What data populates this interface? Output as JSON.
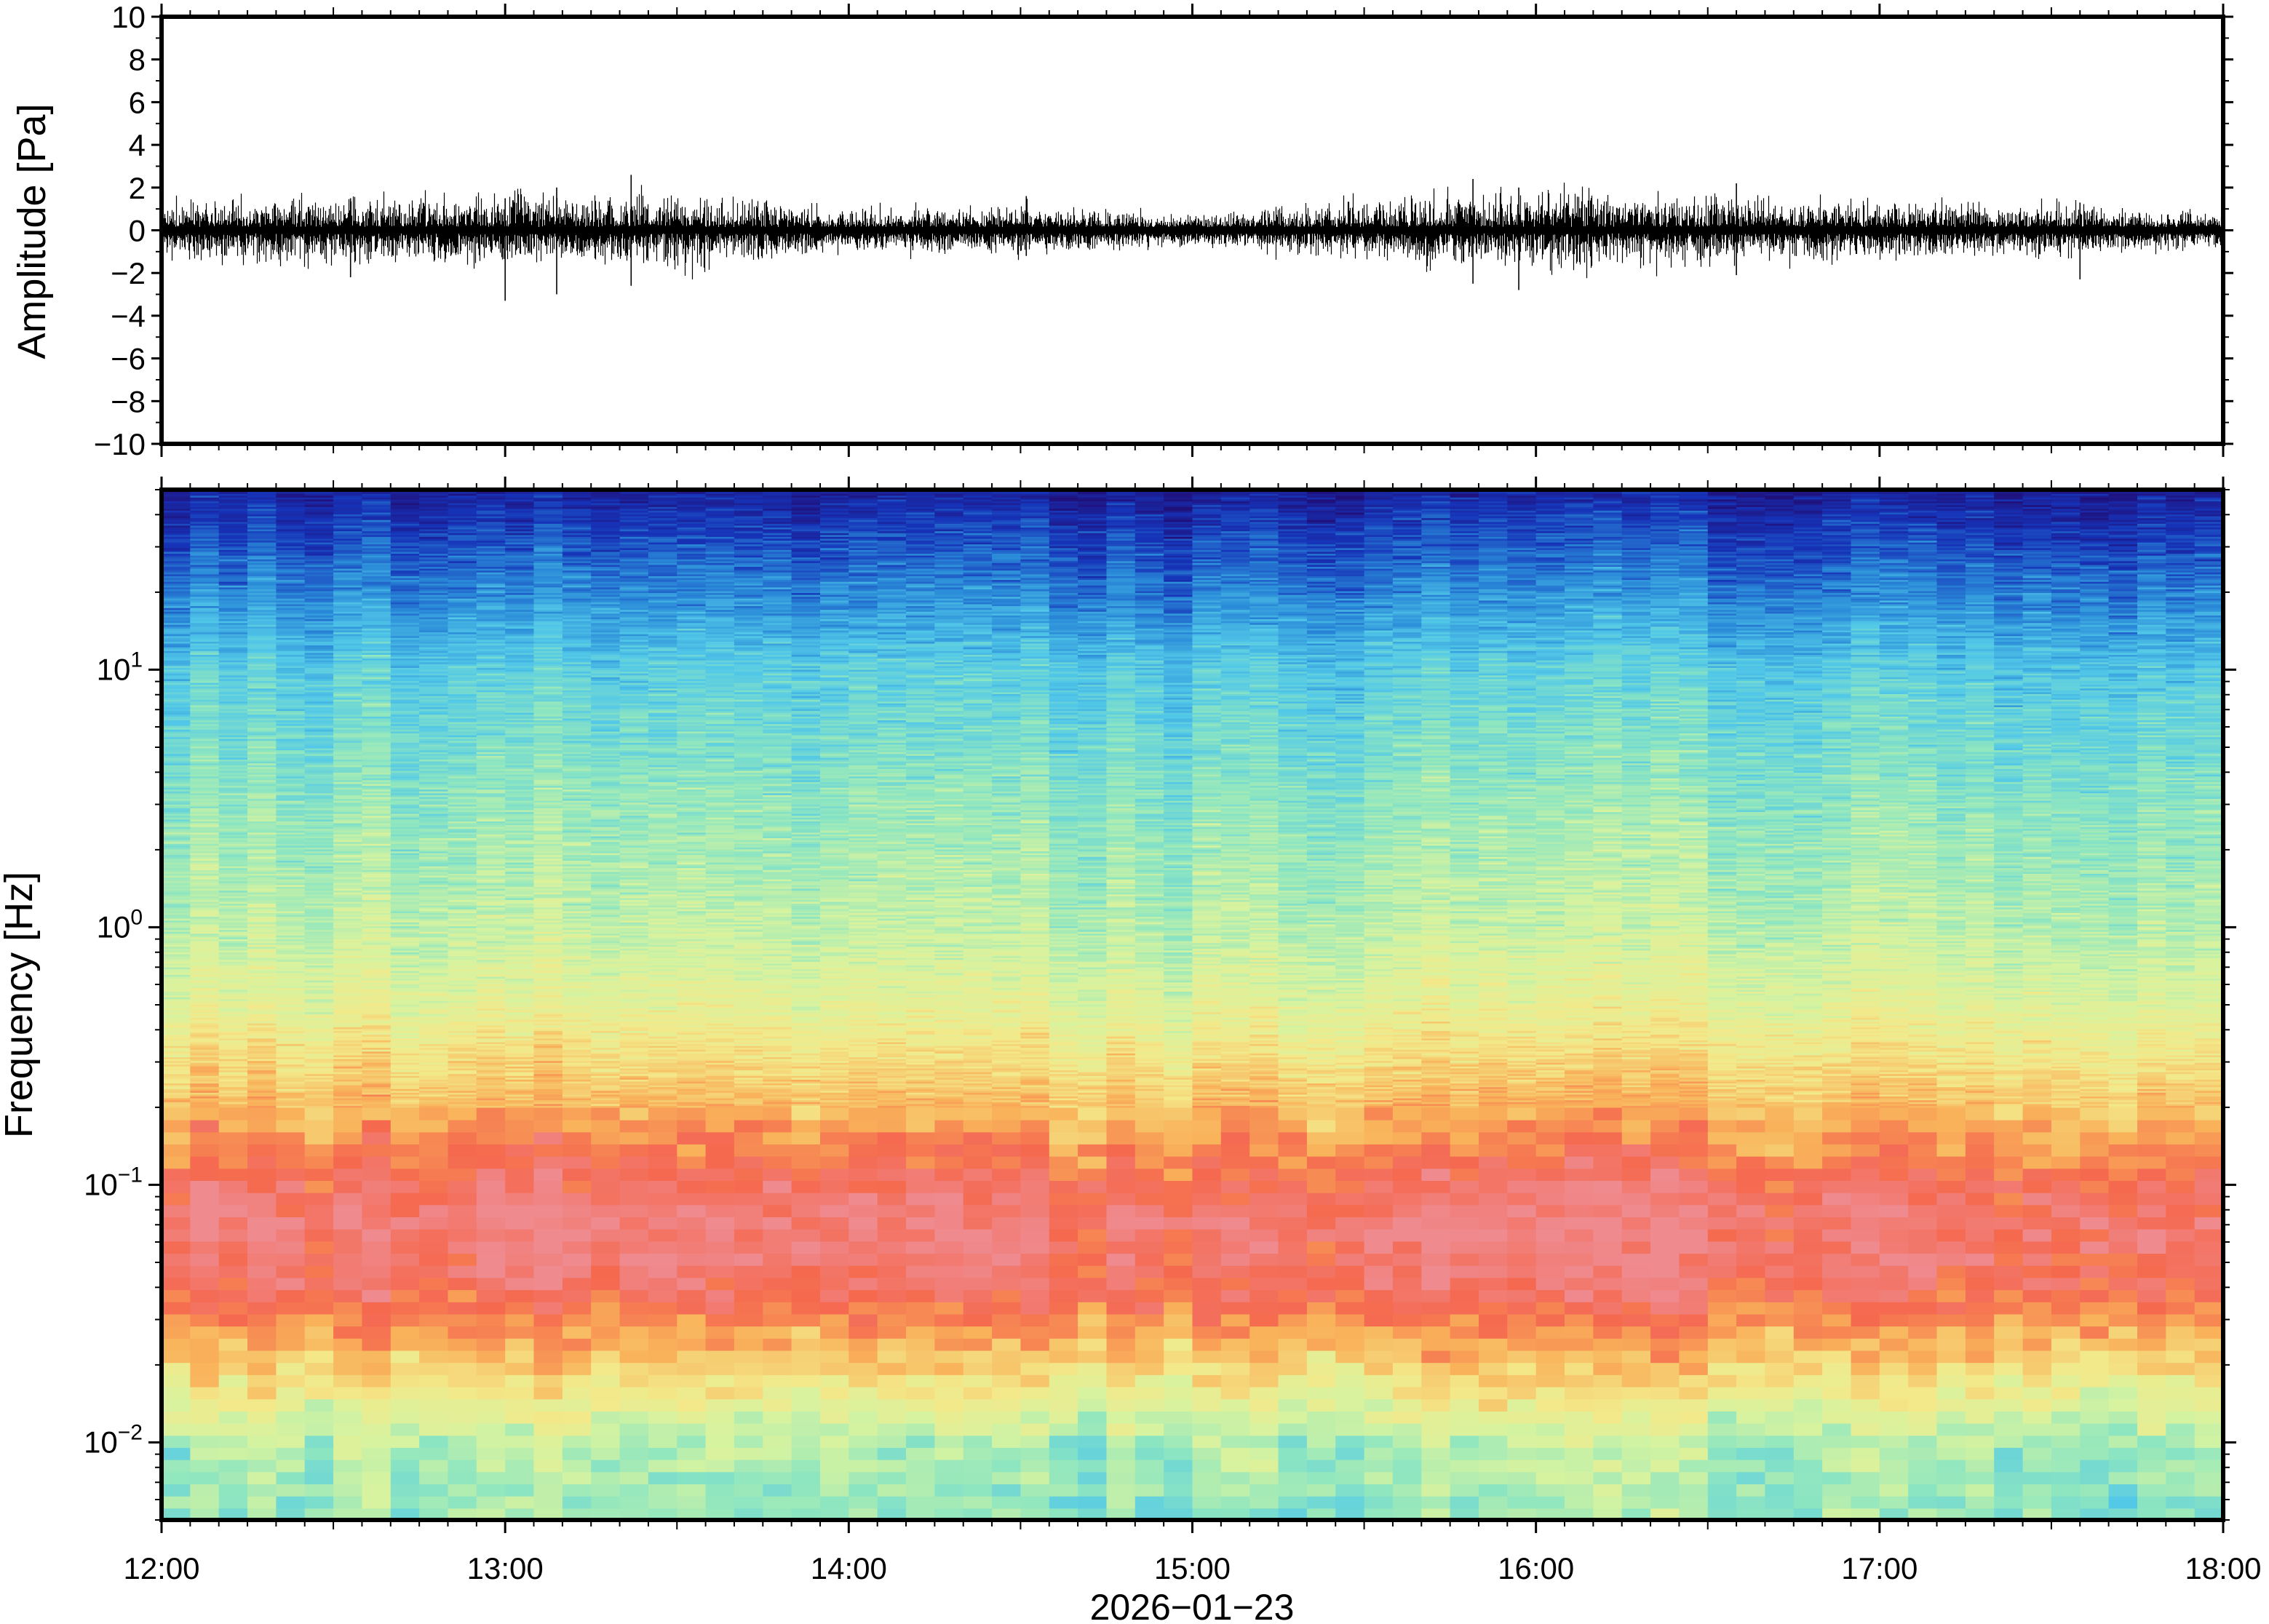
{
  "chart_data": [
    {
      "type": "line",
      "title": "",
      "ylabel": "Amplitude [Pa]",
      "xlabel": "",
      "ylim": [
        -10,
        10
      ],
      "yticks": [
        -10,
        -8,
        -6,
        -4,
        -2,
        0,
        2,
        4,
        6,
        8,
        10
      ],
      "ytick_labels": [
        "−10",
        "−8",
        "−6",
        "−4",
        "−2",
        "0",
        "2",
        "4",
        "6",
        "8",
        "10"
      ],
      "xlim": [
        "12:00",
        "18:00"
      ],
      "grid": false,
      "envelope": {
        "description_units": "Pa",
        "times": [
          "12:00",
          "12:30",
          "13:00",
          "13:30",
          "14:00",
          "14:30",
          "15:00",
          "15:30",
          "16:00",
          "16:30",
          "17:00",
          "17:30",
          "18:00"
        ],
        "peak_abs": [
          1.0,
          1.2,
          1.3,
          1.4,
          0.7,
          0.9,
          0.5,
          1.0,
          1.6,
          1.2,
          1.0,
          0.9,
          0.6
        ]
      },
      "spikes": [
        {
          "time": "12:33",
          "min": -2.2,
          "max": 1.5
        },
        {
          "time": "13:00",
          "min": -3.3,
          "max": 1.5
        },
        {
          "time": "13:09",
          "min": -3.0,
          "max": 2.0
        },
        {
          "time": "13:22",
          "min": -2.6,
          "max": 2.6
        },
        {
          "time": "14:31",
          "min": -1.2,
          "max": 1.6
        },
        {
          "time": "15:49",
          "min": -2.5,
          "max": 2.4
        },
        {
          "time": "15:57",
          "min": -2.8,
          "max": 2.0
        },
        {
          "time": "16:35",
          "min": -2.1,
          "max": 2.2
        },
        {
          "time": "17:35",
          "min": -2.3,
          "max": 1.3
        }
      ]
    },
    {
      "type": "heatmap",
      "title": "",
      "ylabel": "Frequency [Hz]",
      "xlabel": "2026−01−23",
      "yscale": "log",
      "ylim": [
        0.005,
        50
      ],
      "ytick_values": [
        0.01,
        0.1,
        1,
        10
      ],
      "ytick_labels": [
        {
          "base": "10",
          "exp": "−2"
        },
        {
          "base": "10",
          "exp": "−1"
        },
        {
          "base": "10",
          "exp": "0"
        },
        {
          "base": "10",
          "exp": "1"
        }
      ],
      "x_tick_labels": [
        "12:00",
        "13:00",
        "14:00",
        "15:00",
        "16:00",
        "17:00",
        "18:00"
      ],
      "colormap": "spectral (blue = low power, red = high power)",
      "colormap_stops": [
        "#20107a",
        "#1633b8",
        "#2a8ad8",
        "#52c8e8",
        "#8ee6c0",
        "#d6f3a0",
        "#f3e98a",
        "#f9b25a",
        "#f5694f",
        "#ef8a8f"
      ],
      "power_profile": {
        "frequency_hz": [
          0.005,
          0.01,
          0.02,
          0.04,
          0.07,
          0.1,
          0.2,
          0.5,
          1,
          3,
          10,
          20,
          40,
          50
        ],
        "relative_level": [
          0.45,
          0.5,
          0.72,
          0.92,
          0.97,
          0.92,
          0.76,
          0.6,
          0.52,
          0.45,
          0.35,
          0.22,
          0.1,
          0.05
        ]
      }
    }
  ]
}
